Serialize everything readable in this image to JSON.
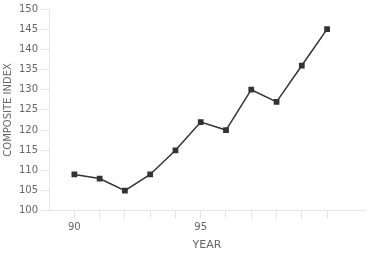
{
  "chart_data": {
    "type": "line",
    "x": [
      90,
      91,
      92,
      93,
      94,
      95,
      96,
      97,
      98,
      99,
      100
    ],
    "values": [
      109,
      108,
      105,
      109,
      115,
      122,
      120,
      130,
      127,
      136,
      145
    ],
    "xlim": [
      89.0,
      101.5
    ],
    "ylim": [
      100,
      150
    ],
    "xticks": [
      90,
      {
        "value": 91,
        "label": null
      },
      {
        "value": 92,
        "label": null
      },
      {
        "value": 93,
        "label": null
      },
      {
        "value": 94,
        "label": null
      },
      95,
      {
        "value": 96,
        "label": null
      },
      {
        "value": 97,
        "label": null
      },
      {
        "value": 98,
        "label": null
      },
      {
        "value": 99,
        "label": null
      },
      {
        "value": 100,
        "label": null
      }
    ],
    "yticks": [
      100,
      105,
      110,
      115,
      120,
      125,
      130,
      135,
      140,
      145,
      150
    ],
    "xlabel": "YEAR",
    "ylabel": "COMPOSITE INDEX",
    "color": "#333333",
    "marker": "square",
    "grid": false
  }
}
